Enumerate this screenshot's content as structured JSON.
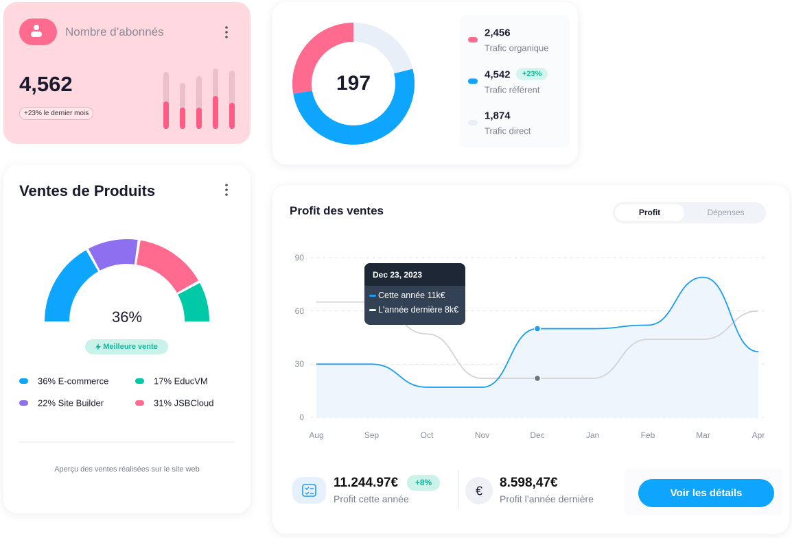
{
  "subscribers": {
    "title": "Nombre d’abonnés",
    "value": "4,562",
    "badge": "+23% le dernier mois",
    "bars": {
      "totals": [
        83,
        67,
        77,
        88,
        85
      ],
      "values": [
        40,
        31,
        31,
        48,
        38
      ]
    }
  },
  "traffic": {
    "total": "197",
    "items": [
      {
        "value": 2456,
        "value_label": "2,456",
        "name": "Trafic organique",
        "color": "#ff6b8f"
      },
      {
        "value": 4542,
        "value_label": "4,542",
        "name": "Trafic référent",
        "color": "#0ea5ff",
        "badge": "+23%"
      },
      {
        "value": 1874,
        "value_label": "1,874",
        "name": "Trafic direct",
        "color": "#e9eff8"
      }
    ]
  },
  "products": {
    "title": "Ventes de Produits",
    "center": "36%",
    "badge": "Meilleure vente",
    "items": [
      {
        "value": 36,
        "label": "36% E-commerce",
        "color": "#0ea5ff"
      },
      {
        "value": 22,
        "label": "22% Site Builder",
        "color": "#8e6ff0"
      },
      {
        "value": 31,
        "label": "31% JSBCloud",
        "color": "#ff6b8f"
      },
      {
        "value": 17,
        "label": "17% EducVM",
        "color": "#00c9a7"
      }
    ],
    "footer": "Aperçu des ventes réalisées sur le site web"
  },
  "profit": {
    "title": "Profit des ventes",
    "tabs": [
      "Profit",
      "Dépenses"
    ],
    "chart_data": {
      "type": "line",
      "categories": [
        "Aug",
        "Sep",
        "Oct",
        "Nov",
        "Dec",
        "Jan",
        "Feb",
        "Mar",
        "Apr"
      ],
      "series": [
        {
          "color": "#1a9cf5",
          "values": [
            30,
            30,
            17,
            17,
            50,
            50,
            52,
            79,
            37
          ]
        },
        {
          "color": "#d4d4d4",
          "values": [
            65,
            65,
            47,
            22,
            22,
            22,
            44,
            44,
            60
          ]
        }
      ],
      "ylim": [
        0,
        90
      ],
      "yticks": [
        0,
        30,
        60,
        90
      ],
      "grid": true
    },
    "tooltip": {
      "title": "Dec 23, 2023",
      "lines": [
        "Cette année 11k€",
        "L'année dernière 8k€"
      ]
    },
    "this_year": {
      "value": "11.244.97€",
      "badge": "+8%",
      "label": "Profit cette année"
    },
    "last_year": {
      "icon": "€",
      "value": "8.598,47€",
      "label": "Profit l’année dernière"
    },
    "button": "Voir les détails"
  }
}
